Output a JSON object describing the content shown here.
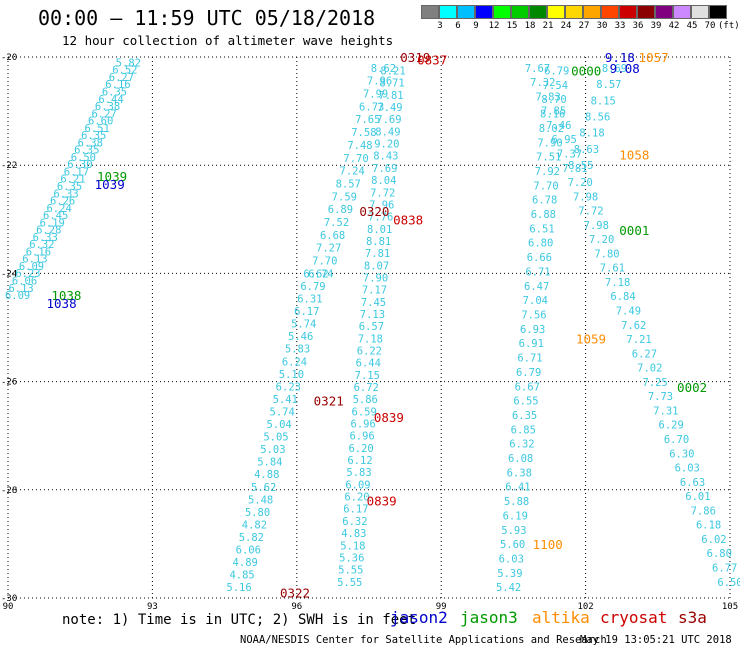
{
  "header": {
    "title": "00:00 – 11:59 UTC 05/18/2018",
    "subtitle": "12 hour collection of altimeter wave heights"
  },
  "color_scale": {
    "labels": [
      "3",
      "6",
      "9",
      "12",
      "15",
      "18",
      "21",
      "24",
      "27",
      "30",
      "33",
      "36",
      "39",
      "42",
      "45",
      "70",
      "(ft)"
    ],
    "colors": [
      "#808080",
      "#00ffff",
      "#00bfff",
      "#0000ff",
      "#00ff00",
      "#00cc00",
      "#008800",
      "#ffff00",
      "#ffd700",
      "#ffa500",
      "#ff4500",
      "#cc0000",
      "#8b0000",
      "#800080",
      "#cc88ff",
      "#e0e0e0",
      "#000000"
    ]
  },
  "footer": {
    "note": "note: 1) Time is in UTC; 2) SWH is in feet",
    "legend": [
      {
        "name": "jason2",
        "color": "#0000cc"
      },
      {
        "name": "jason3",
        "color": "#009900"
      },
      {
        "name": "altika",
        "color": "#ff8c00"
      },
      {
        "name": "cryosat",
        "color": "#cc0000"
      },
      {
        "name": "s3a",
        "color": "#990000"
      }
    ],
    "credit": "NOAA/NESDIS Center for Satellite Applications and Research",
    "created": "May 19 13:05:21 UTC 2018"
  },
  "chart_data": {
    "type": "scatter",
    "x_ticks": [
      "90",
      "93",
      "96",
      "99",
      "102",
      "105"
    ],
    "y_ticks": [
      "-20",
      "-22",
      "-24",
      "-26",
      "-28",
      "-30"
    ],
    "xlim": [
      90,
      105
    ],
    "ylim": [
      -30,
      -20
    ],
    "grid": true,
    "tracks": [
      {
        "id": "t1",
        "color": "#3cc8e0",
        "lon0": 92.5,
        "lat0": -20.1,
        "lon1": 90.2,
        "lat1": -24.4,
        "values": [
          "5.82",
          "6.52",
          "6.27",
          "6.16",
          "6.35",
          "6.44",
          "6.38",
          "6.27",
          "6.60",
          "6.51",
          "6.35",
          "6.38",
          "6.35",
          "6.50",
          "6.30",
          "6.17",
          "6.21",
          "6.35",
          "6.33",
          "6.26",
          "6.24",
          "6.45",
          "6.19",
          "6.28",
          "6.33",
          "6.32",
          "6.16",
          "6.13",
          "6.09",
          "6.23",
          "6.06",
          "6.13",
          "6.09"
        ]
      },
      {
        "id": "t2",
        "color": "#3cc8e0",
        "lon0": 96.4,
        "lat0": -24.0,
        "lon1": 94.8,
        "lat1": -29.8,
        "values": [
          "6.62",
          "6.79",
          "6.31",
          "6.17",
          "5.74",
          "5.46",
          "5.83",
          "6.24",
          "5.10",
          "6.23",
          "5.41",
          "5.74",
          "5.04",
          "5.05",
          "5.03",
          "5.84",
          "4.88",
          "5.62",
          "5.48",
          "5.80",
          "4.82",
          "5.82",
          "6.06",
          "4.89",
          "4.85",
          "5.16"
        ]
      },
      {
        "id": "t3",
        "color": "#3cc8e0",
        "lon0": 97.8,
        "lat0": -20.2,
        "lon1": 96.5,
        "lat1": -24.0,
        "values": [
          "8.62",
          "7.96",
          "7.99",
          "6.73",
          "7.65",
          "7.58",
          "7.48",
          "7.70",
          "7.24",
          "8.57",
          "7.59",
          "6.89",
          "7.52",
          "6.68",
          "7.27",
          "7.70",
          "6.74"
        ]
      },
      {
        "id": "t4",
        "color": "#3cc8e0",
        "lon0": 98.0,
        "lat0": -20.25,
        "lon1": 97.1,
        "lat1": -29.7,
        "values": [
          "8.21",
          "8.71",
          "7.81",
          "7.49",
          "7.69",
          "8.49",
          "9.20",
          "8.43",
          "7.69",
          "8.04",
          "7.72",
          "7.96",
          "7.76",
          "8.01",
          "8.81",
          "7.81",
          "8.07",
          "7.90",
          "7.17",
          "7.45",
          "7.13",
          "6.57",
          "7.18",
          "6.22",
          "6.44",
          "7.15",
          "6.72",
          "5.86",
          "6.59",
          "6.96",
          "6.96",
          "6.20",
          "6.12",
          "5.83",
          "6.09",
          "6.20",
          "6.17",
          "6.32",
          "4.83",
          "5.18",
          "5.36",
          "5.55",
          "5.55"
        ]
      },
      {
        "id": "t5",
        "color": "#3cc8e0",
        "lon0": 101.4,
        "lat0": -20.25,
        "lon1": 100.4,
        "lat1": -29.8,
        "values": [
          "6.79",
          "7.54",
          "8.70",
          "8.16",
          "8.02",
          "7.90",
          "7.51",
          "7.92",
          "7.70",
          "6.78",
          "6.88",
          "6.51",
          "6.80",
          "6.66",
          "6.71",
          "6.47",
          "7.04",
          "7.56",
          "6.93",
          "6.91",
          "6.71",
          "6.79",
          "6.67",
          "6.55",
          "6.35",
          "6.85",
          "6.32",
          "6.08",
          "6.38",
          "6.41",
          "5.88",
          "6.19",
          "5.93",
          "5.60",
          "6.03",
          "5.39",
          "5.42"
        ]
      },
      {
        "id": "t6",
        "color": "#3cc8e0",
        "lon0": 101.0,
        "lat0": -20.2,
        "lon1": 105.0,
        "lat1": -29.7,
        "values": [
          "7.67",
          "7.32",
          "7.83",
          "7.85",
          "7.46",
          "6.95",
          "7.37",
          "7.81",
          "7.20",
          "7.98",
          "7.72",
          "7.98",
          "7.20",
          "7.80",
          "7.61",
          "7.18",
          "6.84",
          "7.49",
          "7.62",
          "7.21",
          "6.27",
          "7.02",
          "7.25",
          "7.73",
          "7.31",
          "6.29",
          "6.70",
          "6.30",
          "6.03",
          "6.63",
          "6.01",
          "7.86",
          "6.18",
          "6.02",
          "6.80",
          "6.77",
          "6.50"
        ]
      },
      {
        "id": "t7",
        "color": "#3cc8e0",
        "lon0": 102.6,
        "lat0": -20.2,
        "lon1": 101.9,
        "lat1": -22.0,
        "values": [
          "8.69",
          "8.57",
          "8.15",
          "8.56",
          "8.18",
          "8.63",
          "8.55"
        ]
      }
    ],
    "labels": [
      {
        "text": "9.18",
        "color": "#0000cc",
        "lon": 102.4,
        "lat": -20.0
      },
      {
        "text": "9.08",
        "color": "#0000cc",
        "lon": 102.5,
        "lat": -20.2
      },
      {
        "text": "0319",
        "color": "#990000",
        "lon": 98.15,
        "lat": -20.0
      },
      {
        "text": "0837",
        "color": "#cc0000",
        "lon": 98.5,
        "lat": -20.05
      },
      {
        "text": "0000",
        "color": "#009900",
        "lon": 101.7,
        "lat": -20.25
      },
      {
        "text": "1057",
        "color": "#ff8c00",
        "lon": 103.1,
        "lat": -20.0
      },
      {
        "text": "1058",
        "color": "#ff8c00",
        "lon": 102.7,
        "lat": -21.8
      },
      {
        "text": "1039",
        "color": "#009900",
        "lon": 91.85,
        "lat": -22.2
      },
      {
        "text": "1039",
        "color": "#0000cc",
        "lon": 91.8,
        "lat": -22.35
      },
      {
        "text": "0320",
        "color": "#990000",
        "lon": 97.3,
        "lat": -22.85
      },
      {
        "text": "0838",
        "color": "#cc0000",
        "lon": 98.0,
        "lat": -23.0
      },
      {
        "text": "0001",
        "color": "#009900",
        "lon": 102.7,
        "lat": -23.2
      },
      {
        "text": "1038",
        "color": "#009900",
        "lon": 90.9,
        "lat": -24.4
      },
      {
        "text": "1038",
        "color": "#0000cc",
        "lon": 90.8,
        "lat": -24.55
      },
      {
        "text": "1059",
        "color": "#ff8c00",
        "lon": 101.8,
        "lat": -25.2
      },
      {
        "text": "0002",
        "color": "#009900",
        "lon": 103.9,
        "lat": -26.1
      },
      {
        "text": "0321",
        "color": "#990000",
        "lon": 96.35,
        "lat": -26.35
      },
      {
        "text": "0839",
        "color": "#cc0000",
        "lon": 97.6,
        "lat": -26.65
      },
      {
        "text": "0839",
        "color": "#cc0000",
        "lon": 97.45,
        "lat": -28.2
      },
      {
        "text": "1100",
        "color": "#ff8c00",
        "lon": 100.9,
        "lat": -29.0
      },
      {
        "text": "0322",
        "color": "#990000",
        "lon": 95.65,
        "lat": -29.9
      }
    ]
  }
}
